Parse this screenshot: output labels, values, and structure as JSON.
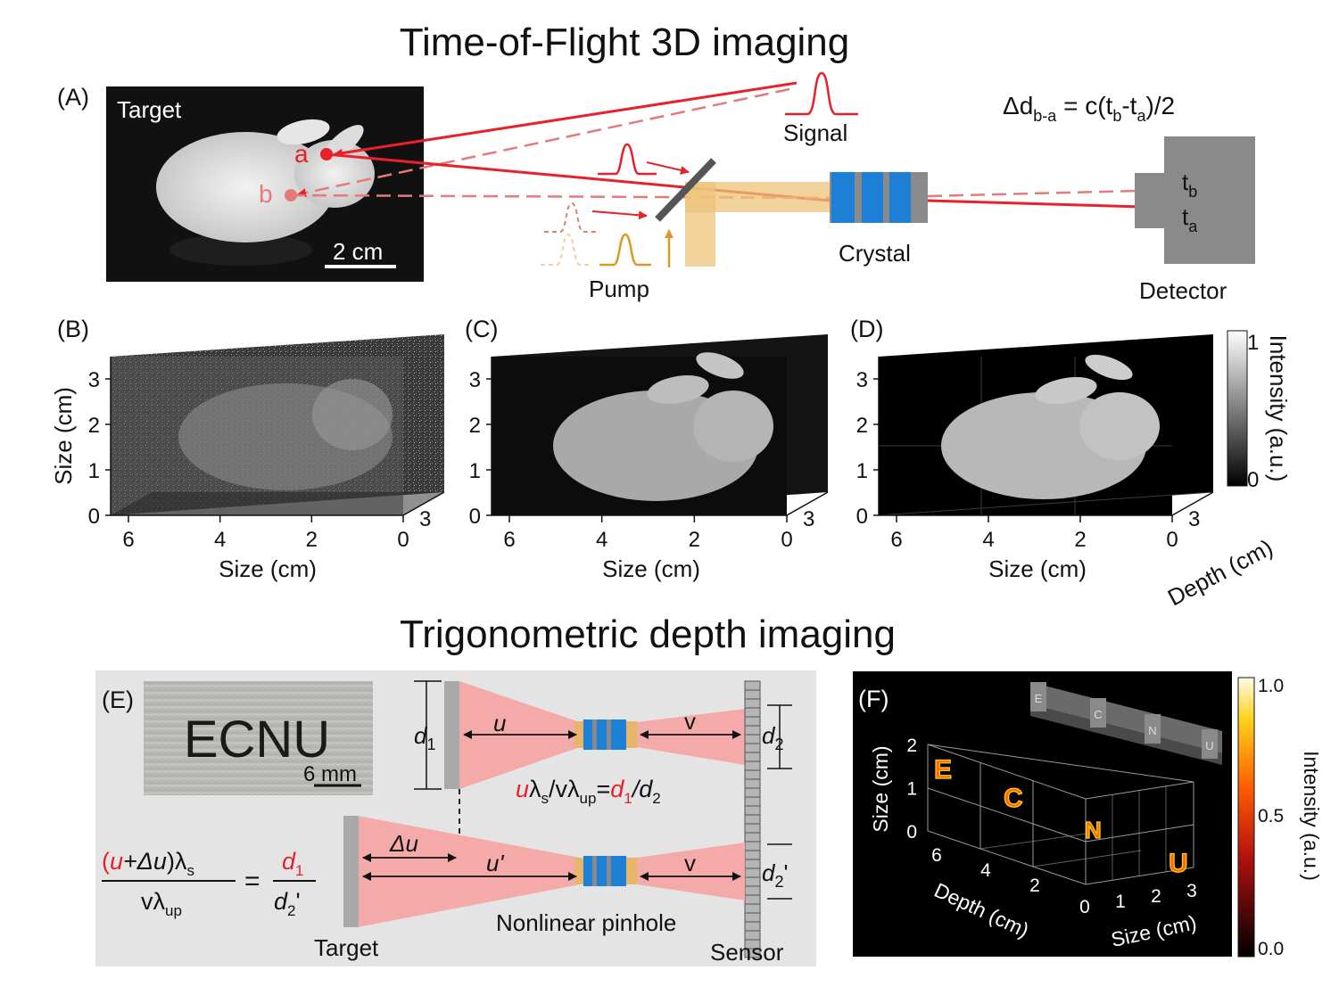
{
  "titles": {
    "tof": "Time-of-Flight 3D imaging",
    "trig": "Trigonometric depth imaging"
  },
  "panel_labels": {
    "A": "(A)",
    "B": "(B)",
    "C": "(C)",
    "D": "(D)",
    "E": "(E)",
    "F": "(F)"
  },
  "panel_a": {
    "photo_label": "Target",
    "point_a": "a",
    "point_b": "b",
    "scale_bar": "2 cm",
    "signal": "Signal",
    "pump": "Pump",
    "crystal": "Crystal",
    "detector": "Detector",
    "equation": "Δd",
    "equation_sub": "b-a",
    "equation_rest": " = c(t",
    "eq_tb_sub": "b",
    "eq_minus": "-t",
    "eq_ta_sub": "a",
    "eq_end": ")/2",
    "tb_t": "t",
    "tb_sub": "b",
    "ta_t": "t",
    "ta_sub": "a"
  },
  "volumes": {
    "y_ticks": [
      "0",
      "1",
      "2",
      "3"
    ],
    "x_ticks": [
      "6",
      "4",
      "2",
      "0"
    ],
    "z_tick": "3",
    "y_label": "Size (cm)",
    "x_label": "Size (cm)",
    "depth_label": "Depth (cm)",
    "colorbar_label": "Intensity (a.u.)",
    "colorbar_max": "1",
    "colorbar_min": "0"
  },
  "panel_e": {
    "photo_text": "ECNU",
    "scale_bar": "6 mm",
    "d1": "d",
    "d1_sub": "1",
    "d2": "d",
    "d2_sub": "2",
    "d2p_sub": "2",
    "prime": "'",
    "u": "u",
    "v": "v",
    "delta_u": "Δu",
    "u_prime": "u'",
    "eq1_u": "u",
    "eq1_ls": "λ",
    "eq1_s": "s",
    "eq1_slash": "/vλ",
    "eq1_up": "up",
    "eq1_eq": "=",
    "eq1_d1": "d",
    "eq1_d1s": "1",
    "eq1_div": "/d",
    "eq1_d2s": "2",
    "eq2_open": "(",
    "eq2_u": "u",
    "eq2_plus": "+Δu",
    "eq2_close": ")λ",
    "eq2_s": "s",
    "eq2_den": "vλ",
    "eq2_up": "up",
    "eq2_eq": "=",
    "eq2_d1": "d",
    "eq2_d1s": "1",
    "eq2_d2": "d",
    "eq2_d2s": "2",
    "eq2_prime": "'",
    "target": "Target",
    "pinhole": "Nonlinear pinhole",
    "sensor": "Sensor"
  },
  "panel_f": {
    "y_ticks": [
      "0",
      "1",
      "2"
    ],
    "depth_ticks": [
      "6",
      "4",
      "2"
    ],
    "x_ticks": [
      "0",
      "1",
      "2",
      "3"
    ],
    "y_label": "Size (cm)",
    "depth_label": "Depth (cm)",
    "x_label": "Size (cm)",
    "letters": [
      "E",
      "C",
      "N",
      "U"
    ],
    "colorbar_label": "Intensity (a.u.)",
    "colorbar_ticks": [
      "1.0",
      "0.5",
      "0.0"
    ]
  },
  "colors": {
    "red": "#e8202a",
    "pump": "#d99a2b",
    "crystal_blue": "#1e7fd6",
    "gray": "#8a8a8a",
    "panel_e_bg": "#e4e4e4",
    "beam_pink": "#f5aaaa"
  }
}
